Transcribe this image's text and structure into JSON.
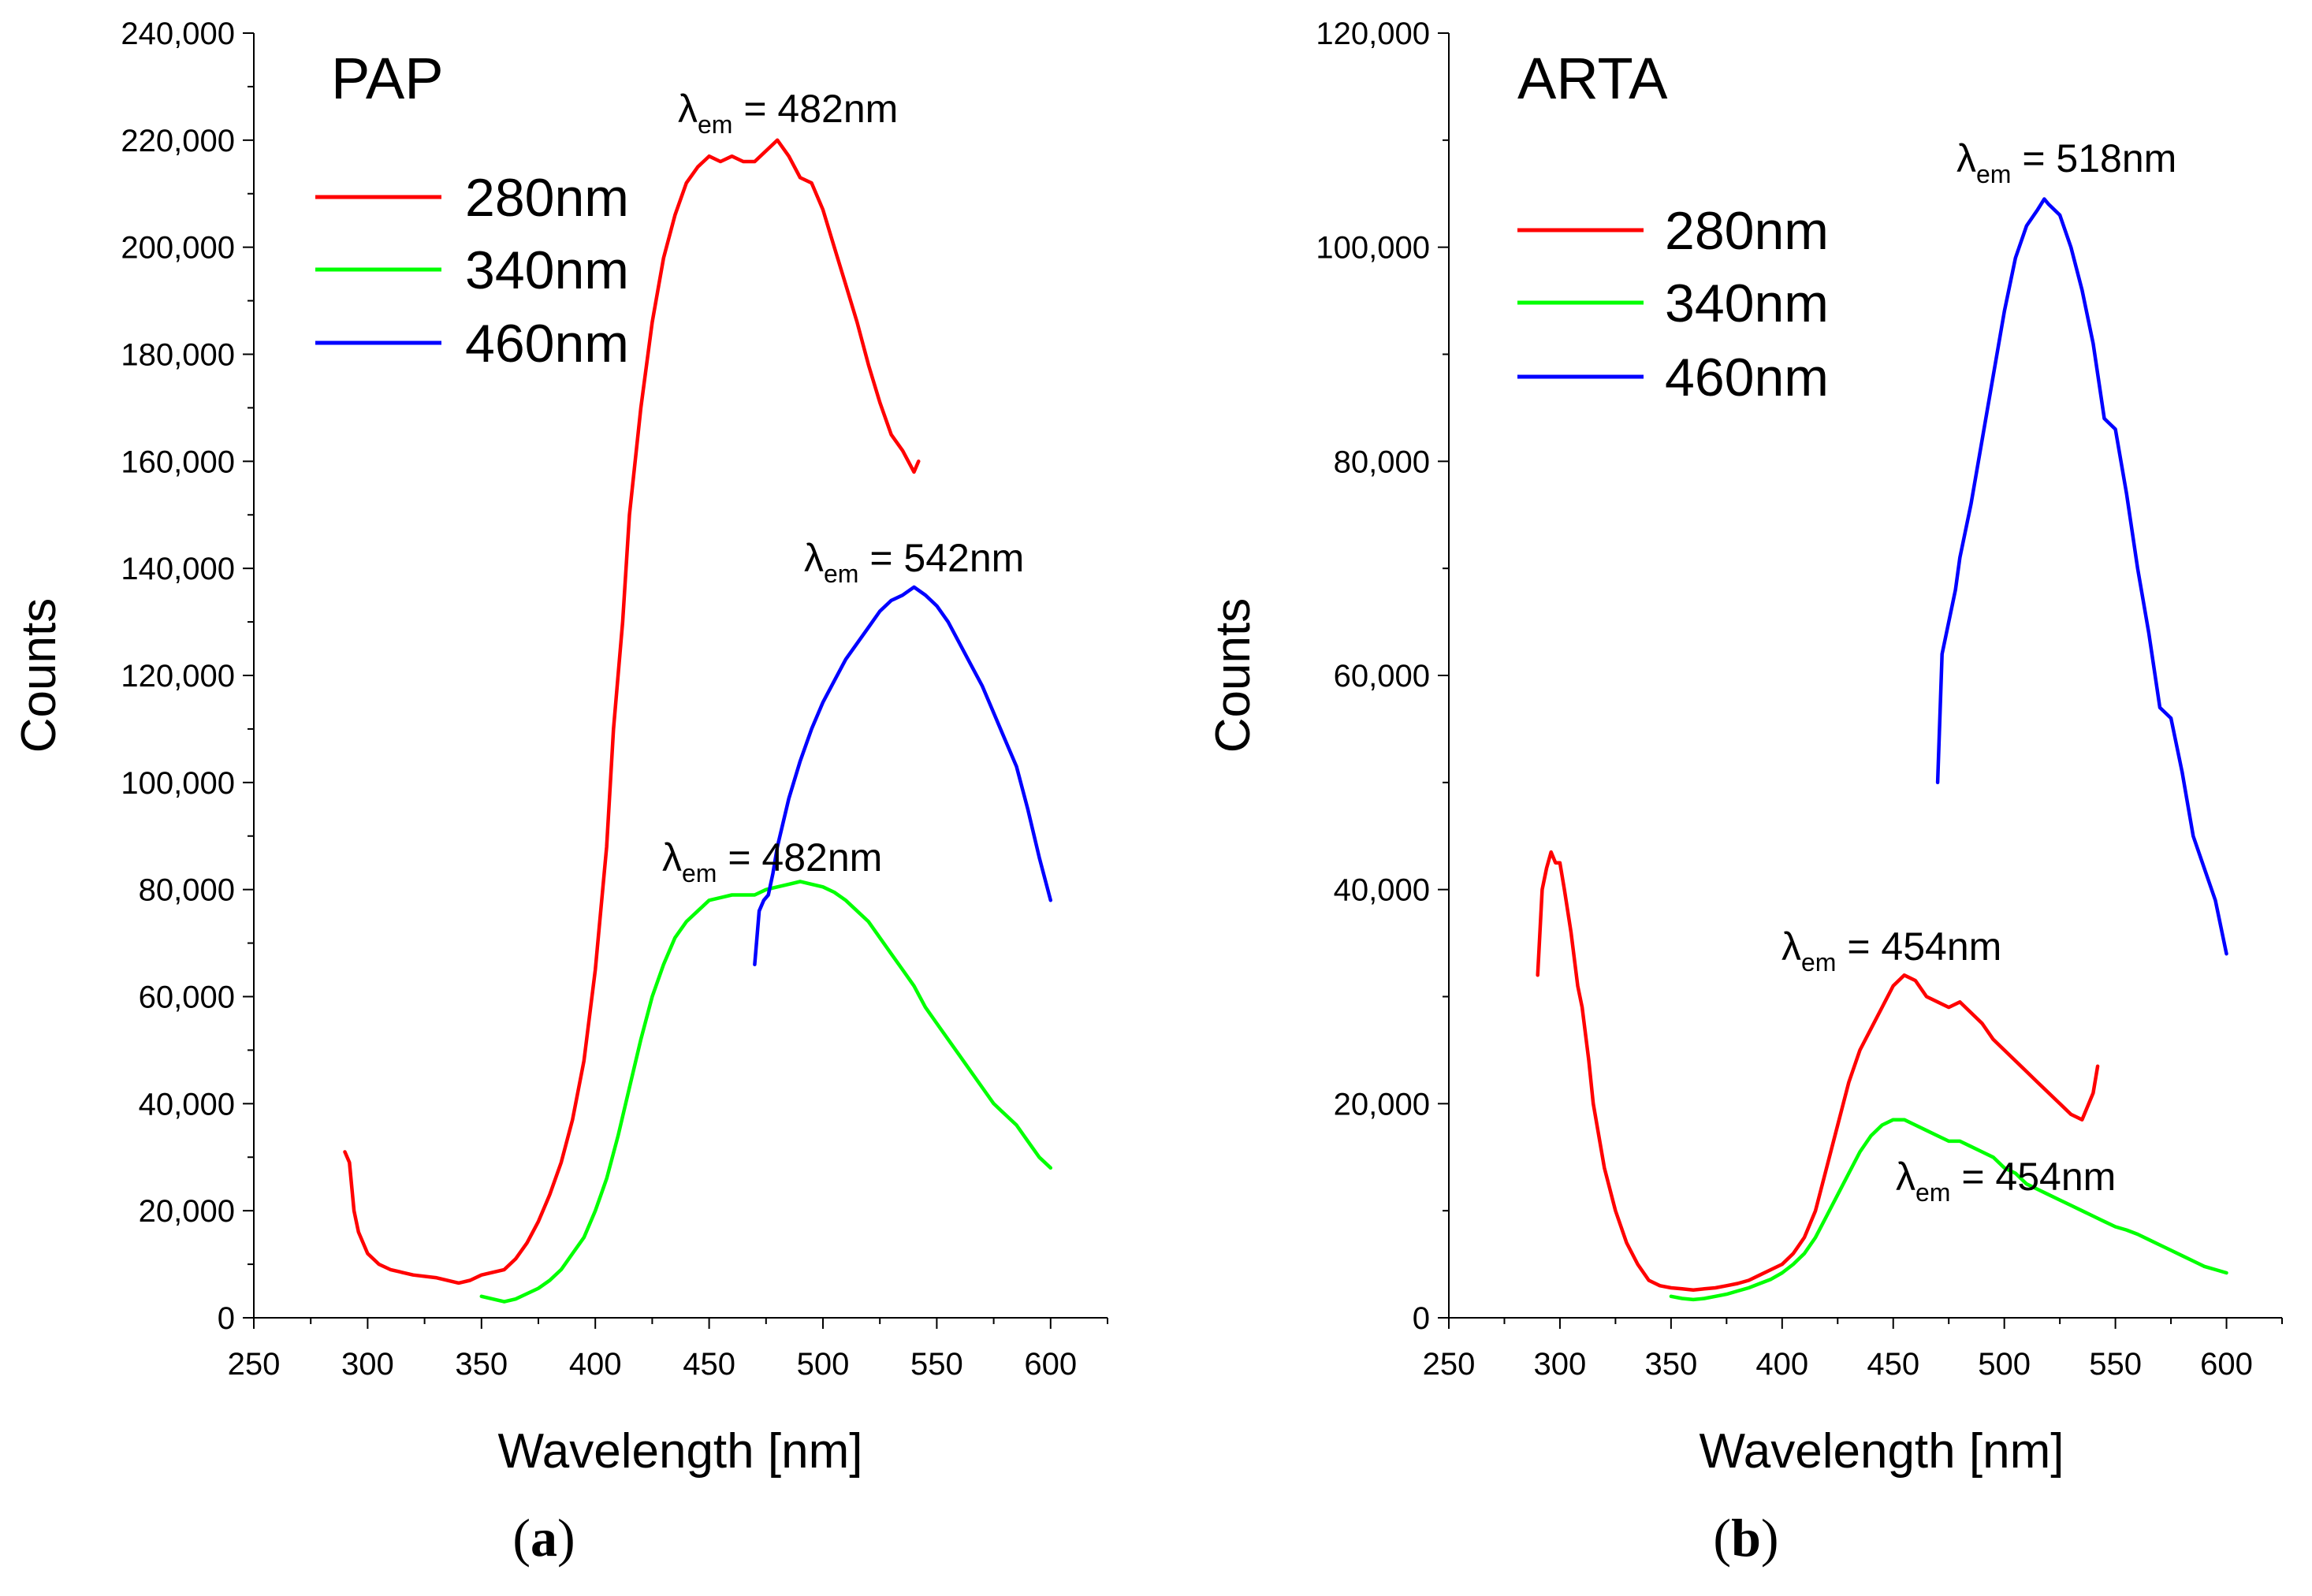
{
  "chart_data": [
    {
      "type": "line",
      "panel_label": "a",
      "title": "PAP",
      "xlabel": "Wavelength [nm]",
      "ylabel": "Counts",
      "xlim": [
        250,
        625
      ],
      "ylim": [
        0,
        240000
      ],
      "xticks": [
        250,
        300,
        350,
        400,
        450,
        500,
        550,
        600
      ],
      "xtick_labels": [
        "250",
        "300",
        "350",
        "400",
        "450",
        "500",
        "550",
        "600"
      ],
      "yticks": [
        0,
        20000,
        40000,
        60000,
        80000,
        100000,
        120000,
        140000,
        160000,
        180000,
        200000,
        220000,
        240000
      ],
      "ytick_labels": [
        "0",
        "20,000",
        "40,000",
        "60,000",
        "80,000",
        "100,000",
        "120,000",
        "140,000",
        "160,000",
        "180,000",
        "200,000",
        "220,000",
        "240,000"
      ],
      "legend_position": "top-left",
      "series": [
        {
          "name": "280nm",
          "color": "#ff0000",
          "x": [
            290,
            292,
            294,
            296,
            300,
            305,
            310,
            320,
            330,
            340,
            345,
            350,
            360,
            365,
            370,
            375,
            380,
            385,
            390,
            395,
            400,
            405,
            408,
            412,
            415,
            420,
            425,
            430,
            435,
            440,
            445,
            450,
            455,
            460,
            465,
            470,
            475,
            480,
            485,
            490,
            495,
            500,
            505,
            510,
            515,
            520,
            525,
            530,
            535,
            540,
            542
          ],
          "values": [
            31000,
            29000,
            20000,
            16000,
            12000,
            10000,
            9000,
            8000,
            7500,
            6500,
            7000,
            8000,
            9000,
            11000,
            14000,
            18000,
            23000,
            29000,
            37000,
            48000,
            65000,
            88000,
            110000,
            130000,
            150000,
            170000,
            186000,
            198000,
            206000,
            212000,
            215000,
            217000,
            216000,
            217000,
            216000,
            216000,
            218000,
            220000,
            217000,
            213000,
            212000,
            207000,
            200000,
            193000,
            186000,
            178000,
            171000,
            165000,
            162000,
            158000,
            160000
          ]
        },
        {
          "name": "340nm",
          "color": "#00ff00",
          "x": [
            350,
            355,
            360,
            365,
            370,
            375,
            380,
            385,
            390,
            395,
            400,
            405,
            410,
            415,
            420,
            425,
            430,
            435,
            440,
            445,
            450,
            455,
            460,
            465,
            470,
            475,
            480,
            485,
            490,
            495,
            500,
            505,
            510,
            515,
            520,
            525,
            530,
            535,
            540,
            545,
            550,
            555,
            560,
            565,
            570,
            575,
            580,
            585,
            590,
            595,
            600
          ],
          "values": [
            4000,
            3500,
            3000,
            3500,
            4500,
            5500,
            7000,
            9000,
            12000,
            15000,
            20000,
            26000,
            34000,
            43000,
            52000,
            60000,
            66000,
            71000,
            74000,
            76000,
            78000,
            78500,
            79000,
            79000,
            79000,
            80000,
            80500,
            81000,
            81500,
            81000,
            80500,
            79500,
            78000,
            76000,
            74000,
            71000,
            68000,
            65000,
            62000,
            58000,
            55000,
            52000,
            49000,
            46000,
            43000,
            40000,
            38000,
            36000,
            33000,
            30000,
            28000
          ]
        },
        {
          "name": "460nm",
          "color": "#0000ff",
          "x": [
            470,
            472,
            474,
            476,
            478,
            480,
            485,
            490,
            495,
            500,
            505,
            510,
            515,
            520,
            525,
            530,
            535,
            540,
            545,
            550,
            555,
            560,
            565,
            570,
            575,
            580,
            585,
            590,
            595,
            600
          ],
          "values": [
            66000,
            76000,
            78000,
            79000,
            83000,
            88000,
            97000,
            104000,
            110000,
            115000,
            119000,
            123000,
            126000,
            129000,
            132000,
            134000,
            135000,
            136500,
            135000,
            133000,
            130000,
            126000,
            122000,
            118000,
            113000,
            108000,
            103000,
            95000,
            86000,
            78000
          ]
        }
      ],
      "annotations": [
        {
          "symbol": "λ",
          "subscript": "em",
          "text": " = 482nm",
          "x": 482,
          "y": 220000
        },
        {
          "symbol": "λ",
          "subscript": "em",
          "text": " = 542nm",
          "x": 542,
          "y": 136500
        },
        {
          "symbol": "λ",
          "subscript": "em",
          "text": " = 482nm",
          "x": 482,
          "y": 81500
        }
      ]
    },
    {
      "type": "line",
      "panel_label": "b",
      "title": "ARTA",
      "xlabel": "Wavelength [nm]",
      "ylabel": "Counts",
      "xlim": [
        250,
        625
      ],
      "ylim": [
        0,
        120000
      ],
      "xticks": [
        250,
        300,
        350,
        400,
        450,
        500,
        550,
        600
      ],
      "xtick_labels": [
        "250",
        "300",
        "350",
        "400",
        "450",
        "500",
        "550",
        "600"
      ],
      "yticks": [
        0,
        20000,
        40000,
        60000,
        80000,
        100000,
        120000
      ],
      "ytick_labels": [
        "0",
        "20,000",
        "40,000",
        "60,000",
        "80,000",
        "100,000",
        "120,000"
      ],
      "legend_position": "top-left",
      "series": [
        {
          "name": "280nm",
          "color": "#ff0000",
          "x": [
            290,
            292,
            294,
            296,
            298,
            300,
            302,
            305,
            308,
            310,
            313,
            315,
            320,
            325,
            330,
            335,
            340,
            345,
            350,
            355,
            360,
            365,
            370,
            375,
            380,
            385,
            390,
            395,
            400,
            405,
            410,
            415,
            420,
            425,
            430,
            435,
            440,
            445,
            450,
            455,
            460,
            465,
            470,
            475,
            480,
            485,
            490,
            495,
            500,
            505,
            510,
            515,
            520,
            525,
            530,
            535,
            540,
            542
          ],
          "values": [
            32000,
            40000,
            42000,
            43500,
            42500,
            42500,
            40000,
            36000,
            31000,
            29000,
            24000,
            20000,
            14000,
            10000,
            7000,
            5000,
            3500,
            3000,
            2800,
            2700,
            2600,
            2700,
            2800,
            3000,
            3200,
            3500,
            4000,
            4500,
            5000,
            6000,
            7500,
            10000,
            14000,
            18000,
            22000,
            25000,
            27000,
            29000,
            31000,
            32000,
            31500,
            30000,
            29500,
            29000,
            29500,
            28500,
            27500,
            26000,
            25000,
            24000,
            23000,
            22000,
            21000,
            20000,
            19000,
            18500,
            21000,
            23500
          ]
        },
        {
          "name": "340nm",
          "color": "#00ff00",
          "x": [
            350,
            355,
            360,
            365,
            370,
            375,
            380,
            385,
            390,
            395,
            400,
            405,
            410,
            415,
            420,
            425,
            430,
            435,
            440,
            445,
            450,
            455,
            460,
            465,
            470,
            475,
            480,
            485,
            490,
            495,
            500,
            505,
            510,
            515,
            520,
            525,
            530,
            535,
            540,
            545,
            550,
            555,
            560,
            565,
            570,
            575,
            580,
            585,
            590,
            595,
            600
          ],
          "values": [
            2000,
            1800,
            1700,
            1800,
            2000,
            2200,
            2500,
            2800,
            3200,
            3600,
            4200,
            5000,
            6000,
            7500,
            9500,
            11500,
            13500,
            15500,
            17000,
            18000,
            18500,
            18500,
            18000,
            17500,
            17000,
            16500,
            16500,
            16000,
            15500,
            15000,
            14000,
            13500,
            12500,
            12000,
            11500,
            11000,
            10500,
            10000,
            9500,
            9000,
            8500,
            8200,
            7800,
            7300,
            6800,
            6300,
            5800,
            5300,
            4800,
            4500,
            4200
          ]
        },
        {
          "name": "460nm",
          "color": "#0000ff",
          "x": [
            470,
            472,
            475,
            478,
            480,
            485,
            490,
            495,
            500,
            505,
            510,
            515,
            518,
            520,
            525,
            530,
            535,
            540,
            545,
            550,
            555,
            560,
            565,
            570,
            575,
            580,
            585,
            590,
            595,
            600
          ],
          "values": [
            50000,
            62000,
            65000,
            68000,
            71000,
            76000,
            82000,
            88000,
            94000,
            99000,
            102000,
            103500,
            104500,
            104000,
            103000,
            100000,
            96000,
            91000,
            84000,
            83000,
            77000,
            70000,
            64000,
            57000,
            56000,
            51000,
            45000,
            42000,
            39000,
            34000
          ]
        }
      ],
      "annotations": [
        {
          "symbol": "λ",
          "subscript": "em",
          "text": " = 518nm",
          "x": 518,
          "y": 104500
        },
        {
          "symbol": "λ",
          "subscript": "em",
          "text": " = 454nm",
          "x": 454,
          "y": 32000
        },
        {
          "symbol": "λ",
          "subscript": "em",
          "text": " = 454nm",
          "x": 454,
          "y": 18500
        }
      ]
    }
  ]
}
